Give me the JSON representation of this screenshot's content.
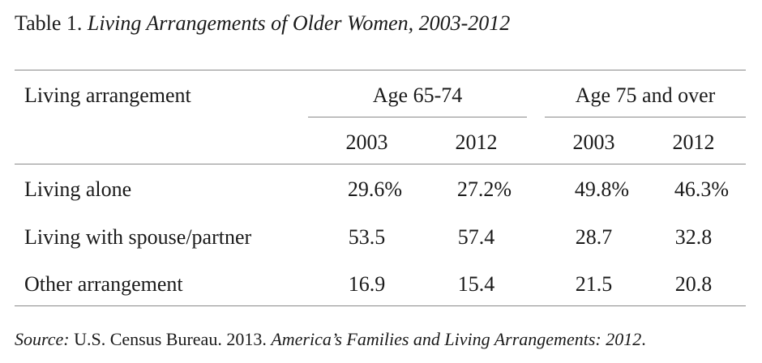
{
  "table": {
    "title_prefix": "Table 1.",
    "title_italic": "Living Arrangements of Older Women, 2003-2012",
    "header": {
      "row_label": "Living arrangement",
      "groups": [
        "Age 65-74",
        "Age 75 and over"
      ],
      "years": [
        "2003",
        "2012",
        "2003",
        "2012"
      ]
    },
    "rows": [
      {
        "label": "Living alone",
        "values": [
          "29.6%",
          "27.2%",
          "49.8%",
          "46.3%"
        ]
      },
      {
        "label": "Living with spouse/partner",
        "values": [
          "53.5",
          "57.4",
          "28.7",
          "32.8"
        ]
      },
      {
        "label": "Other arrangement",
        "values": [
          "16.9",
          "15.4",
          "21.5",
          "20.8"
        ]
      }
    ],
    "source": {
      "label": "Source:",
      "text": "U.S. Census Bureau. 2013.",
      "italic": "America’s Families and Living Arrangements: 2012",
      "end": "."
    }
  }
}
